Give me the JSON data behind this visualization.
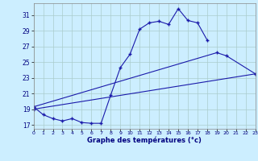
{
  "title": "Graphe des températures (°c)",
  "background_color": "#cceeff",
  "grid_color": "#aacccc",
  "line_color": "#1a1aaa",
  "xlim": [
    0,
    23
  ],
  "ylim": [
    16.5,
    32.5
  ],
  "yticks": [
    17,
    19,
    21,
    23,
    25,
    27,
    29,
    31
  ],
  "xticks": [
    0,
    1,
    2,
    3,
    4,
    5,
    6,
    7,
    8,
    9,
    10,
    11,
    12,
    13,
    14,
    15,
    16,
    17,
    18,
    19,
    20,
    21,
    22,
    23
  ],
  "series_main": {
    "x": [
      0,
      1,
      2,
      3,
      4,
      5,
      6,
      7,
      8,
      9,
      10,
      11,
      12,
      13,
      14,
      15,
      16,
      17,
      18
    ],
    "y": [
      19.3,
      18.3,
      17.8,
      17.5,
      17.8,
      17.3,
      17.2,
      17.2,
      20.8,
      24.3,
      26.0,
      29.2,
      30.0,
      30.2,
      29.8,
      31.8,
      30.3,
      30.0,
      27.8
    ]
  },
  "series_upper": {
    "x": [
      0,
      19,
      20,
      23
    ],
    "y": [
      19.3,
      26.2,
      25.8,
      23.5
    ]
  },
  "series_lower": {
    "x": [
      0,
      23
    ],
    "y": [
      19.0,
      23.5
    ]
  }
}
